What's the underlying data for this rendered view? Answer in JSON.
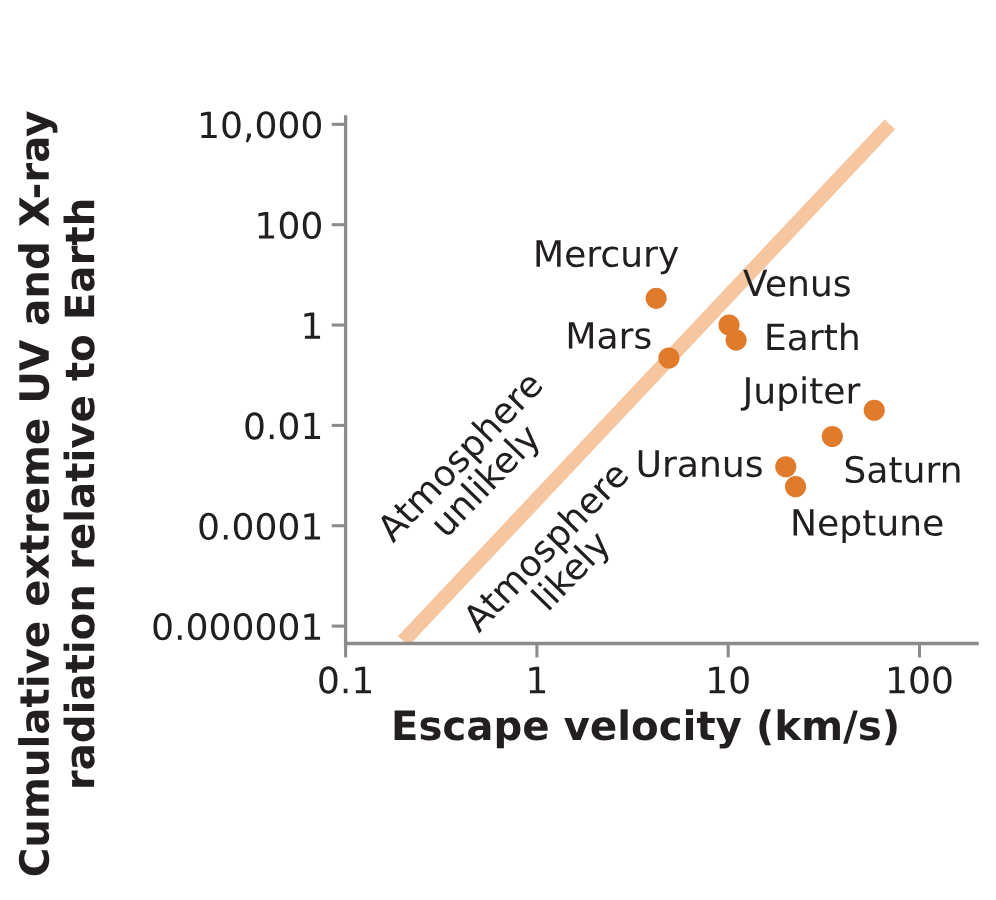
{
  "chart_data": {
    "type": "scatter",
    "xlabel": "Escape velocity (km/s)",
    "ylabel": "Cumulative extreme UV and X-ray\nradiation relative to Earth",
    "log": "xy",
    "xlim": [
      0.1,
      200
    ],
    "ylim": [
      4.5e-07,
      14000
    ],
    "xticks": [
      0.1,
      1,
      10,
      100
    ],
    "yticks": [
      {
        "value": 1e-06,
        "label": "0.000001"
      },
      {
        "value": 0.0001,
        "label": "0.0001"
      },
      0.01,
      1,
      100,
      {
        "value": 10000,
        "label": "10,000"
      }
    ],
    "marker": "circle",
    "annotations": [
      "Atmosphere\nunlikely",
      "Atmosphere\nlikely"
    ],
    "series": [
      {
        "type": "line",
        "color": "#f5c6a0",
        "x": [
          0.2,
          70
        ],
        "values": [
          5e-07,
          10000
        ],
        "marker": "none"
      },
      {
        "name": "Mercury",
        "color": "#e07b2c",
        "x": [
          4.2
        ],
        "values": [
          3.4
        ]
      },
      {
        "name": "Venus",
        "color": "#e07b2c",
        "x": [
          10.1
        ],
        "values": [
          1.0
        ]
      },
      {
        "name": "Earth",
        "color": "#e07b2c",
        "x": [
          11
        ],
        "values": [
          0.5
        ]
      },
      {
        "name": "Mars",
        "color": "#e07b2c",
        "x": [
          4.9
        ],
        "values": [
          0.22
        ]
      },
      {
        "name": "Jupiter",
        "color": "#e07b2c",
        "x": [
          58
        ],
        "values": [
          0.02
        ]
      },
      {
        "name": "Saturn",
        "color": "#e07b2c",
        "x": [
          35
        ],
        "values": [
          0.006
        ]
      },
      {
        "name": "Uranus",
        "color": "#e07b2c",
        "x": [
          20
        ],
        "values": [
          0.0015
        ]
      },
      {
        "name": "Neptune",
        "color": "#e07b2c",
        "x": [
          22.5
        ],
        "values": [
          0.0006
        ]
      }
    ]
  }
}
